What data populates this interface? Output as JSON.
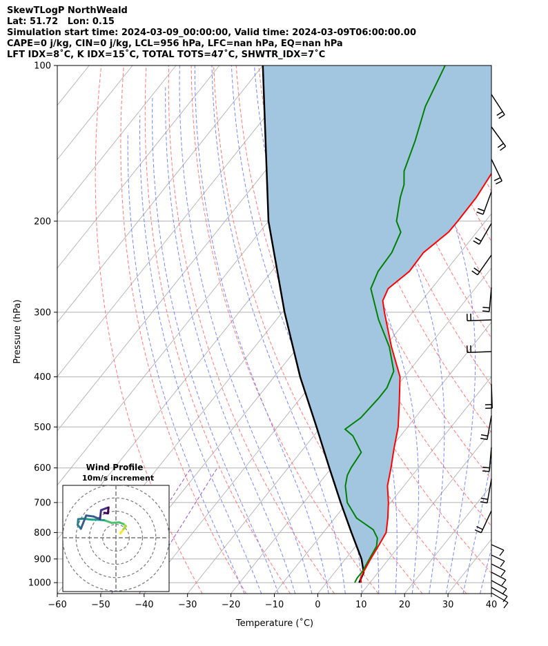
{
  "header": {
    "title": "SkewTLogP NorthWeald",
    "location": "Lat: 51.72   Lon: 0.15",
    "times": "Simulation start time: 2024-03-09_00:00:00, Valid time: 2024-03-09T06:00:00.00",
    "indices": "CAPE=0 j/kg, CIN=0 j/kg, LCL=956 hPa, LFC=nan hPa, EQ=nan hPa",
    "indices2": "LFT IDX=8˚C, K IDX=15˚C, TOTAL TOTS=47˚C, SHWTR_IDX=7˚C"
  },
  "axes": {
    "xlabel": "Temperature (˚C)",
    "ylabel": "Pressure (hPa)"
  },
  "inset": {
    "title": "Wind Profile",
    "subtitle": "10m/s increment"
  },
  "colors": {
    "temperature": "#ff0000",
    "dewpoint": "#008000",
    "parcel": "#000000",
    "cape_fill": "#a2c6df",
    "dry_adiabat": "#ff6a6a",
    "moist_adiabat": "#6a7aff",
    "mixing_ratio": "#9a4fc8",
    "isotherm": "#b0b0b0"
  },
  "chart_data": {
    "type": "line",
    "skew": "skew-T log-p",
    "x_axis": {
      "label": "Temperature (˚C)",
      "range": [
        -60,
        40
      ],
      "ticks": [
        -60,
        -50,
        -40,
        -30,
        -20,
        -10,
        0,
        10,
        20,
        30,
        40
      ]
    },
    "y_axis": {
      "label": "Pressure (hPa)",
      "scale": "log",
      "range": [
        1050,
        100
      ],
      "ticks": [
        1000,
        900,
        800,
        700,
        600,
        500,
        400,
        300,
        200,
        100
      ]
    },
    "grid": true,
    "series": [
      {
        "role": "temperature",
        "color": "#ff0000",
        "points": [
          [
            1000,
            8
          ],
          [
            980,
            7
          ],
          [
            950,
            6.5
          ],
          [
            900,
            5.8
          ],
          [
            850,
            5.2
          ],
          [
            800,
            4.5
          ],
          [
            750,
            2.2
          ],
          [
            700,
            -0.5
          ],
          [
            650,
            -3.8
          ],
          [
            600,
            -6.3
          ],
          [
            550,
            -9.2
          ],
          [
            500,
            -12.2
          ],
          [
            450,
            -16.3
          ],
          [
            400,
            -21
          ],
          [
            350,
            -28.5
          ],
          [
            300,
            -36.5
          ],
          [
            285,
            -39
          ],
          [
            270,
            -40
          ],
          [
            250,
            -38.3
          ],
          [
            230,
            -38.5
          ],
          [
            210,
            -36.5
          ],
          [
            200,
            -36.4
          ],
          [
            180,
            -36.5
          ],
          [
            160,
            -37.5
          ],
          [
            140,
            -40.4
          ],
          [
            120,
            -43.7
          ],
          [
            100,
            -48
          ]
        ]
      },
      {
        "role": "dewpoint",
        "color": "#008000",
        "points": [
          [
            1000,
            6.5
          ],
          [
            980,
            6.2
          ],
          [
            950,
            6.2
          ],
          [
            900,
            5.5
          ],
          [
            850,
            4.8
          ],
          [
            820,
            3.5
          ],
          [
            790,
            1
          ],
          [
            750,
            -5
          ],
          [
            700,
            -10
          ],
          [
            650,
            -13.5
          ],
          [
            620,
            -15
          ],
          [
            600,
            -15.5
          ],
          [
            560,
            -16
          ],
          [
            520,
            -21
          ],
          [
            505,
            -24
          ],
          [
            480,
            -22.5
          ],
          [
            440,
            -22
          ],
          [
            420,
            -22
          ],
          [
            390,
            -23.5
          ],
          [
            350,
            -29
          ],
          [
            310,
            -36.5
          ],
          [
            270,
            -44
          ],
          [
            250,
            -45.5
          ],
          [
            230,
            -45.8
          ],
          [
            210,
            -47.5
          ],
          [
            200,
            -50.5
          ],
          [
            180,
            -54
          ],
          [
            170,
            -55.5
          ],
          [
            160,
            -58
          ],
          [
            140,
            -61
          ],
          [
            120,
            -65
          ],
          [
            100,
            -68
          ]
        ]
      },
      {
        "role": "parcel",
        "color": "#000000",
        "points": [
          [
            1000,
            7.5
          ],
          [
            956,
            6.7
          ],
          [
            900,
            3.7
          ],
          [
            800,
            -3.5
          ],
          [
            700,
            -11.5
          ],
          [
            600,
            -20.5
          ],
          [
            500,
            -31
          ],
          [
            400,
            -44
          ],
          [
            300,
            -59.5
          ],
          [
            200,
            -80
          ],
          [
            100,
            -110
          ]
        ]
      }
    ],
    "cape_cin_shading": "between temperature and parcel profile",
    "wind_barbs": "right margin, one barb per level from surface to 100 hPa",
    "hodograph": {
      "title": "Wind Profile",
      "subtitle": "10m/s increment",
      "range": [
        -10,
        10
      ],
      "rings": [
        2.5,
        5,
        7.5,
        10
      ],
      "colormap": "viridis (by height)",
      "points": [
        [
          0.8,
          0.8
        ],
        [
          1.4,
          1.6
        ],
        [
          1.9,
          2.2
        ],
        [
          1.4,
          2.6
        ],
        [
          0.6,
          2.9
        ],
        [
          -0.8,
          2.8
        ],
        [
          -2.2,
          3.3
        ],
        [
          -3.5,
          3.4
        ],
        [
          -4.5,
          3.4
        ],
        [
          -6.2,
          3.6
        ],
        [
          -7.1,
          3.5
        ],
        [
          -7.2,
          2.4
        ],
        [
          -6.6,
          1.7
        ],
        [
          -5.6,
          4.2
        ],
        [
          -4.2,
          4.0
        ],
        [
          -3.0,
          3.5
        ],
        [
          -2.8,
          5.2
        ],
        [
          -2.0,
          5.5
        ],
        [
          -1.4,
          5.7
        ],
        [
          -1.5,
          4.6
        ],
        [
          -2.2,
          4.7
        ]
      ]
    }
  }
}
